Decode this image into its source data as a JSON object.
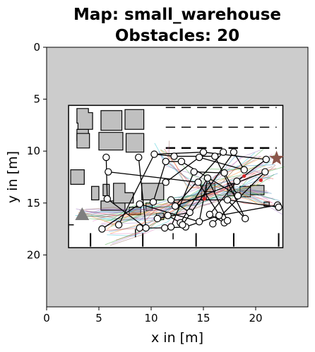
{
  "chart_data": {
    "type": "scatter",
    "title_line1": "Map: small_warehouse",
    "title_line2": "Obstacles: 20",
    "xlabel": "x in [m]",
    "ylabel": "y in [m]",
    "xlim": [
      0,
      25
    ],
    "ylim": [
      25,
      0
    ],
    "xticks": [
      "0",
      "5",
      "10",
      "15",
      "20"
    ],
    "yticks": [
      "0",
      "5",
      "10",
      "15",
      "20"
    ],
    "grid": false,
    "colors": {
      "background_area": "#cccccc",
      "free_space": "#ffffff",
      "obstacle_fill": "#c0c0c0",
      "edge": "#000000",
      "goal_star": "#8c564b",
      "start_triangle": "#7f7f7f",
      "node": "#ffffff"
    },
    "warehouse_boundary": [
      [
        2.1,
        5.6
      ],
      [
        22.6,
        5.6
      ],
      [
        22.6,
        19.3
      ],
      [
        2.1,
        19.3
      ]
    ],
    "goal_star": [
      22.0,
      10.7
    ],
    "start_triangle": [
      3.4,
      16.1
    ],
    "nodes": [
      [
        5.7,
        10.6
      ],
      [
        5.9,
        12.0
      ],
      [
        5.8,
        14.6
      ],
      [
        5.3,
        17.5
      ],
      [
        6.9,
        17.1
      ],
      [
        8.8,
        10.6
      ],
      [
        8.9,
        15.1
      ],
      [
        8.9,
        17.4
      ],
      [
        9.5,
        17.4
      ],
      [
        10.3,
        10.3
      ],
      [
        10.2,
        14.9
      ],
      [
        10.6,
        16.5
      ],
      [
        11.3,
        17.4
      ],
      [
        11.4,
        11.0
      ],
      [
        11.4,
        13.0
      ],
      [
        11.6,
        16.2
      ],
      [
        11.9,
        14.7
      ],
      [
        12.2,
        10.5
      ],
      [
        11.9,
        17.3
      ],
      [
        12.9,
        11.0
      ],
      [
        12.3,
        15.3
      ],
      [
        12.8,
        16.9
      ],
      [
        13.3,
        17.3
      ],
      [
        13.0,
        17.1
      ],
      [
        13.7,
        15.9
      ],
      [
        14.1,
        12.0
      ],
      [
        14.6,
        10.6
      ],
      [
        14.5,
        13.0
      ],
      [
        14.6,
        16.8
      ],
      [
        15.0,
        10.1
      ],
      [
        15.4,
        12.6
      ],
      [
        15.6,
        16.1
      ],
      [
        15.9,
        17.0
      ],
      [
        16.1,
        10.5
      ],
      [
        16.5,
        16.2
      ],
      [
        16.9,
        10.1
      ],
      [
        17.0,
        12.1
      ],
      [
        17.3,
        14.7
      ],
      [
        17.0,
        16.9
      ],
      [
        17.3,
        16.7
      ],
      [
        17.9,
        10.1
      ],
      [
        18.2,
        12.9
      ],
      [
        18.3,
        14.3
      ],
      [
        18.9,
        11.8
      ],
      [
        19.0,
        16.5
      ],
      [
        20.9,
        12.0
      ],
      [
        21.0,
        10.8
      ],
      [
        22.1,
        15.2
      ],
      [
        22.2,
        15.4
      ]
    ],
    "red_points": [
      [
        18.9,
        12.4
      ],
      [
        15.1,
        14.6
      ],
      [
        20.5,
        12.8
      ]
    ]
  }
}
